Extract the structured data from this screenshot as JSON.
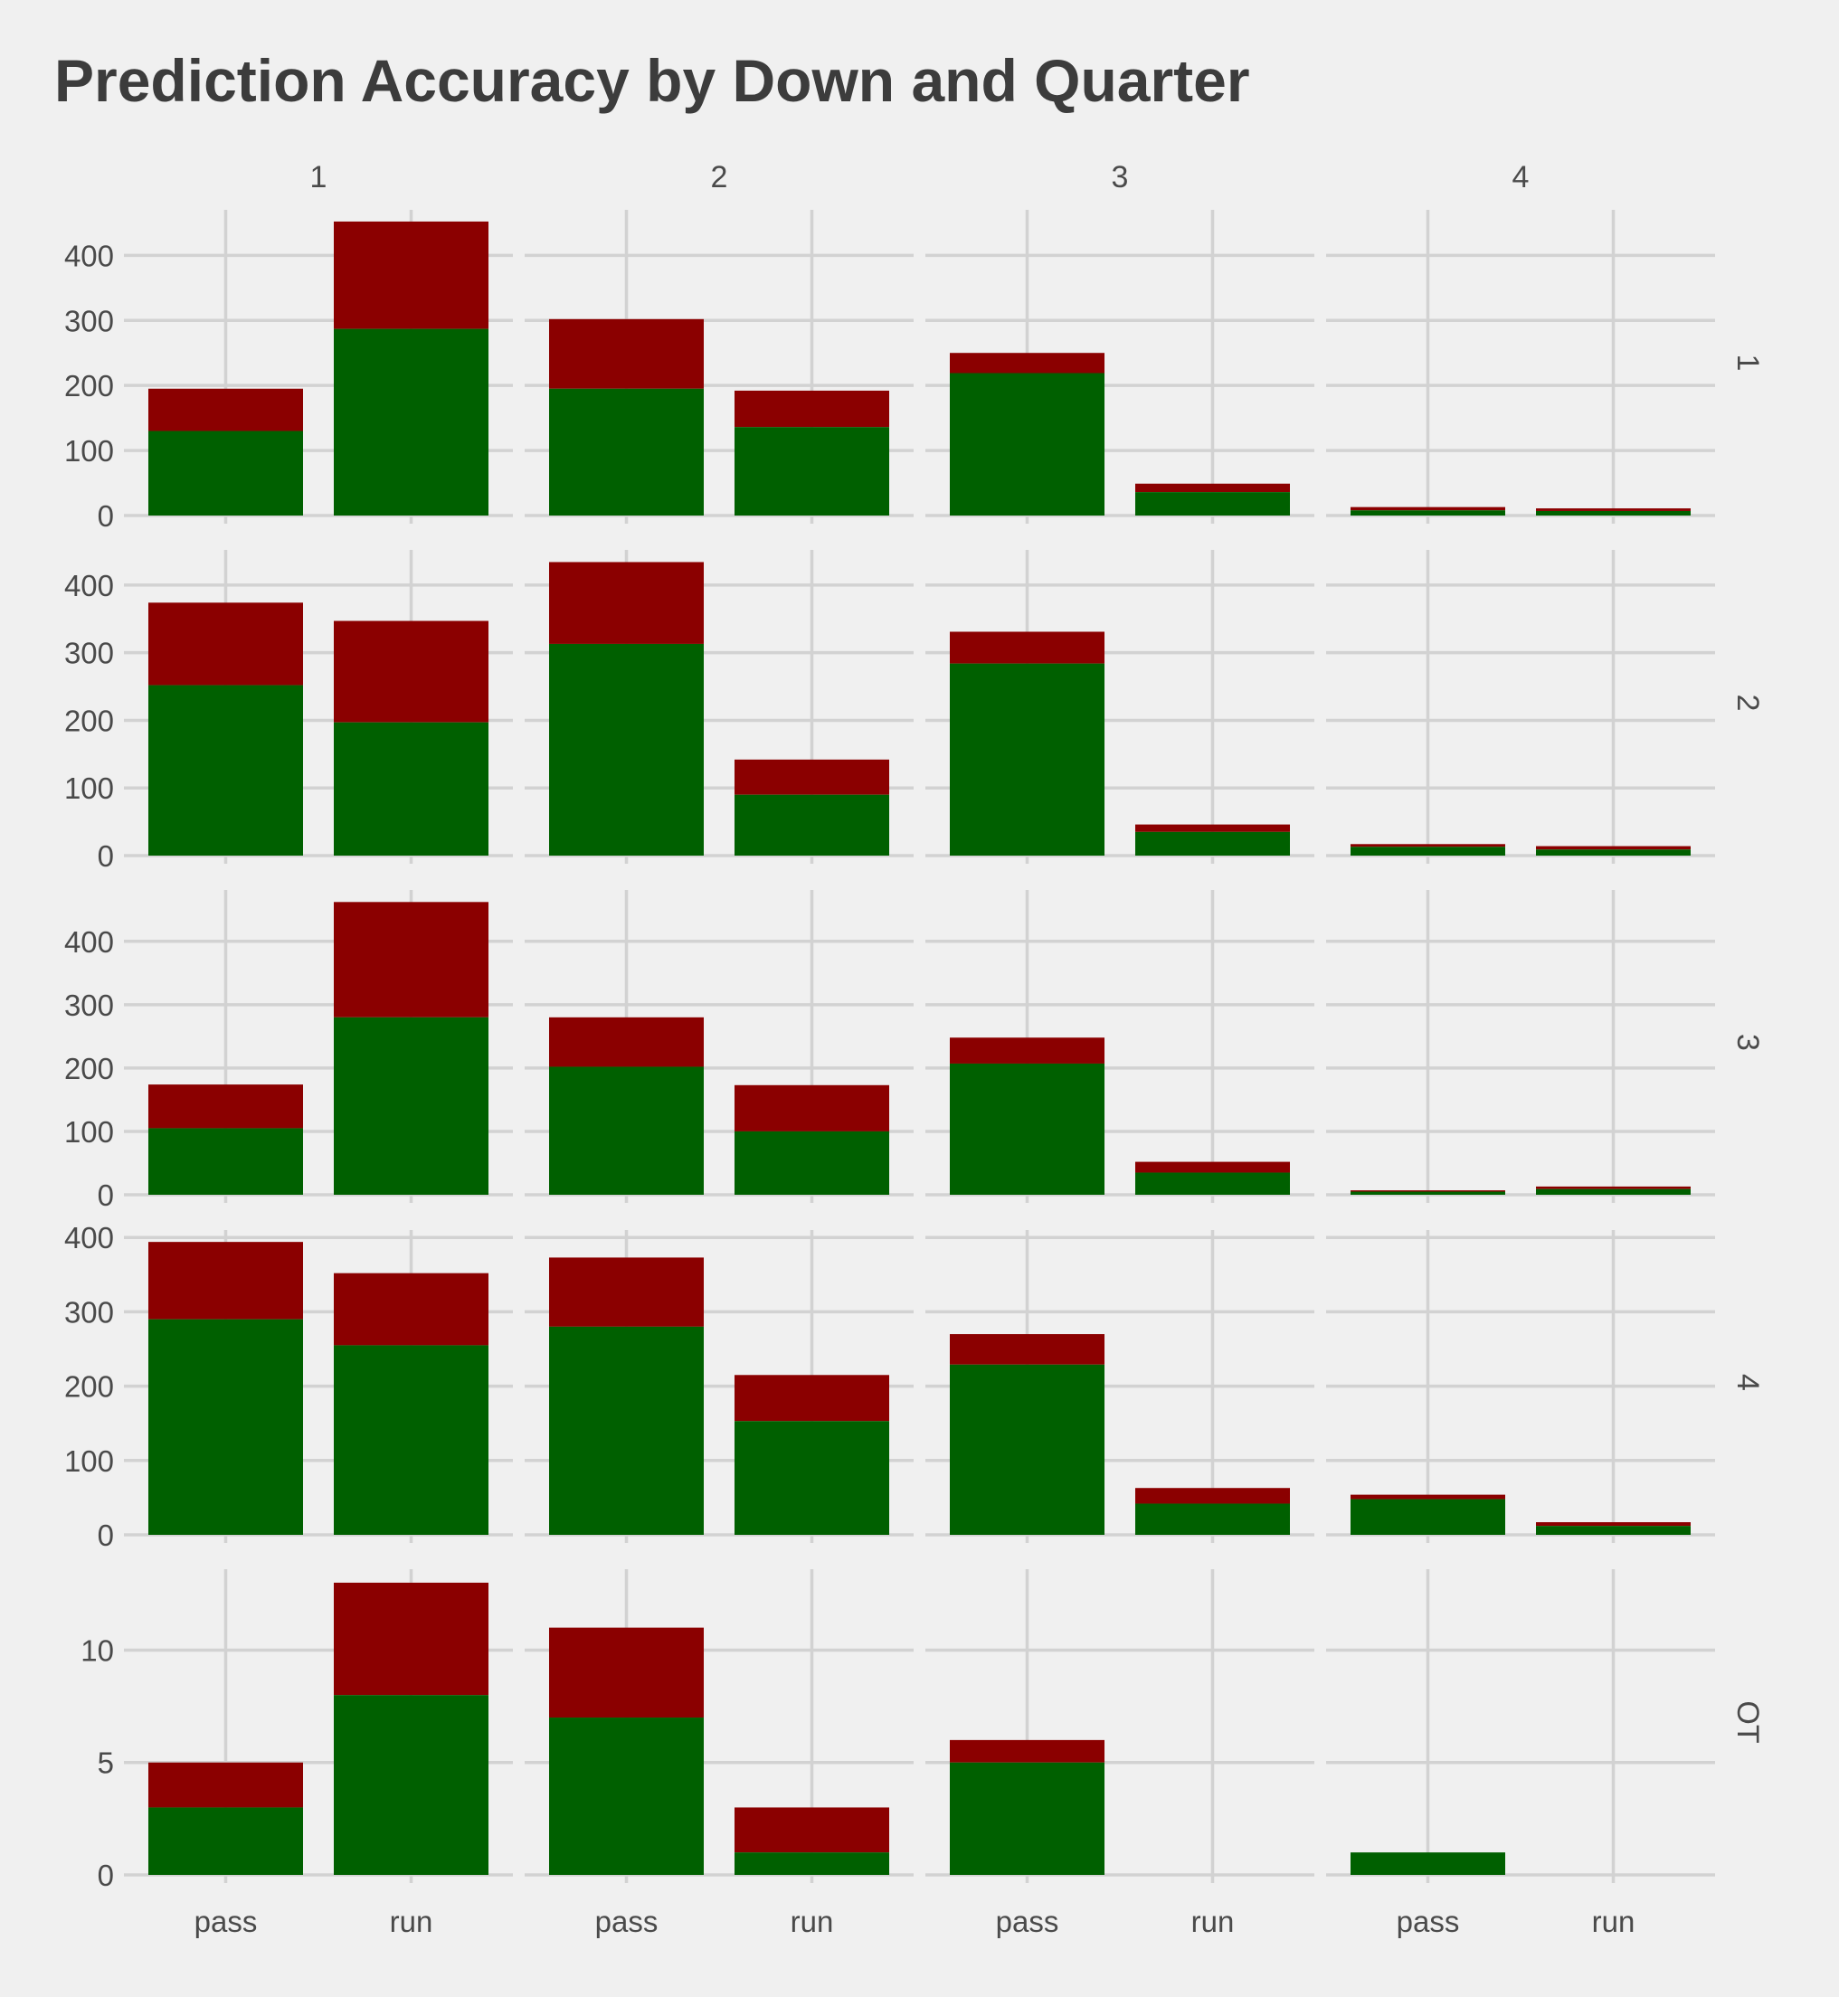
{
  "chart_data": {
    "type": "bar",
    "stacked": true,
    "title": "Prediction Accuracy by Down and Quarter",
    "facets": {
      "columns_variable_values": [
        "1",
        "2",
        "3",
        "4"
      ],
      "rows_variable_values": [
        "1",
        "2",
        "3",
        "4",
        "OT"
      ]
    },
    "categories": [
      "pass",
      "run"
    ],
    "series_colors": {
      "correct": "#006000",
      "incorrect": "#8b0000"
    },
    "grid": true,
    "panels": [
      {
        "row": "1",
        "col": "1",
        "pass": [
          130,
          195
        ],
        "run": [
          287,
          452
        ]
      },
      {
        "row": "1",
        "col": "2",
        "pass": [
          195,
          302
        ],
        "run": [
          136,
          192
        ]
      },
      {
        "row": "1",
        "col": "3",
        "pass": [
          219,
          250
        ],
        "run": [
          36,
          49
        ]
      },
      {
        "row": "1",
        "col": "4",
        "pass": [
          8,
          13
        ],
        "run": [
          7,
          11
        ]
      },
      {
        "row": "2",
        "col": "1",
        "pass": [
          252,
          374
        ],
        "run": [
          197,
          347
        ]
      },
      {
        "row": "2",
        "col": "2",
        "pass": [
          313,
          434
        ],
        "run": [
          90,
          142
        ]
      },
      {
        "row": "2",
        "col": "3",
        "pass": [
          284,
          331
        ],
        "run": [
          35,
          46
        ]
      },
      {
        "row": "2",
        "col": "4",
        "pass": [
          13,
          17
        ],
        "run": [
          9,
          14
        ]
      },
      {
        "row": "3",
        "col": "1",
        "pass": [
          105,
          174
        ],
        "run": [
          280,
          462
        ]
      },
      {
        "row": "3",
        "col": "2",
        "pass": [
          202,
          280
        ],
        "run": [
          100,
          173
        ]
      },
      {
        "row": "3",
        "col": "3",
        "pass": [
          207,
          248
        ],
        "run": [
          35,
          52
        ]
      },
      {
        "row": "3",
        "col": "4",
        "pass": [
          5,
          7
        ],
        "run": [
          9,
          13
        ]
      },
      {
        "row": "4",
        "col": "1",
        "pass": [
          290,
          394
        ],
        "run": [
          255,
          352
        ]
      },
      {
        "row": "4",
        "col": "2",
        "pass": [
          280,
          373
        ],
        "run": [
          153,
          215
        ]
      },
      {
        "row": "4",
        "col": "3",
        "pass": [
          229,
          270
        ],
        "run": [
          42,
          63
        ]
      },
      {
        "row": "4",
        "col": "4",
        "pass": [
          48,
          54
        ],
        "run": [
          12,
          17
        ]
      },
      {
        "row": "OT",
        "col": "1",
        "pass": [
          3,
          5
        ],
        "run": [
          8,
          13
        ]
      },
      {
        "row": "OT",
        "col": "2",
        "pass": [
          7,
          11
        ],
        "run": [
          1,
          3
        ]
      },
      {
        "row": "OT",
        "col": "3",
        "pass": [
          5,
          6
        ],
        "run": null
      },
      {
        "row": "OT",
        "col": "4",
        "pass": [
          1,
          1
        ],
        "run": null
      }
    ],
    "row_axes": [
      {
        "row": "1",
        "ylim": [
          0,
          470
        ],
        "ticks": [
          0,
          100,
          200,
          300,
          400
        ]
      },
      {
        "row": "2",
        "ylim": [
          0,
          452
        ],
        "ticks": [
          0,
          100,
          200,
          300,
          400
        ]
      },
      {
        "row": "3",
        "ylim": [
          0,
          481
        ],
        "ticks": [
          0,
          100,
          200,
          300,
          400
        ]
      },
      {
        "row": "4",
        "ylim": [
          0,
          410
        ],
        "ticks": [
          0,
          100,
          200,
          300,
          400
        ]
      },
      {
        "row": "OT",
        "ylim": [
          0,
          13.6
        ],
        "ticks": [
          0,
          5,
          10
        ]
      }
    ]
  }
}
